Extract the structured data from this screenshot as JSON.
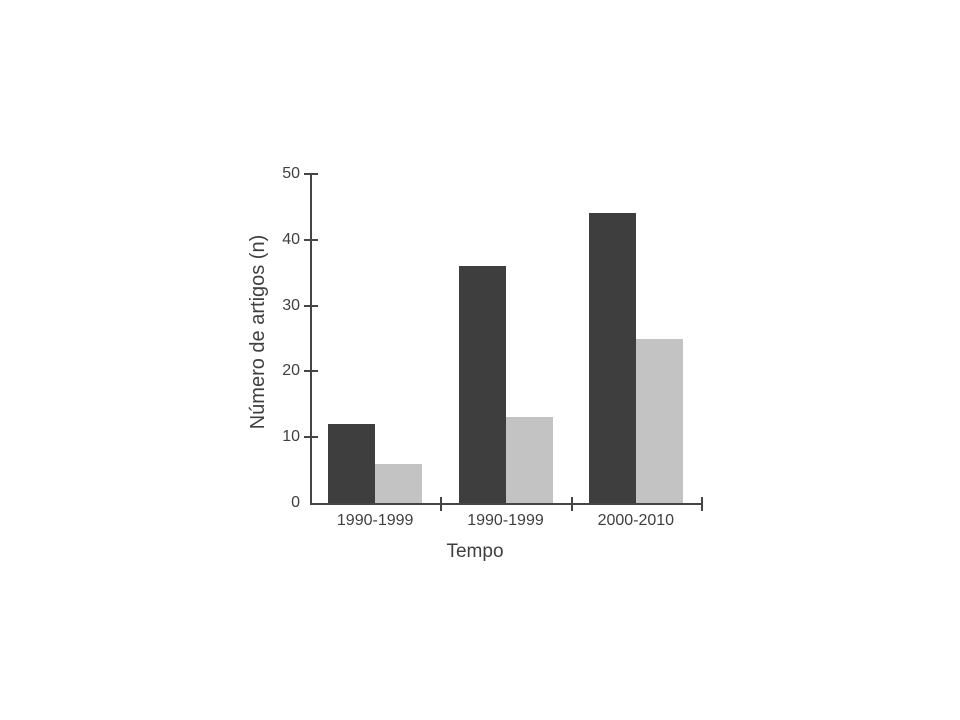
{
  "chart_data": {
    "type": "bar",
    "title": "",
    "xlabel": "Tempo",
    "ylabel": "Número de artigos (n)",
    "categories": [
      "1990-1999",
      "1990-1999",
      "2000-2010"
    ],
    "series": [
      {
        "name": "dark",
        "color": "#3e3e3e",
        "values": [
          12,
          36,
          44
        ]
      },
      {
        "name": "light",
        "color": "#c3c3c3",
        "values": [
          6,
          13,
          25
        ]
      }
    ],
    "ylim": [
      0,
      50
    ],
    "yticks": [
      0,
      10,
      20,
      30,
      40,
      50
    ],
    "grid": false,
    "legend": "none"
  },
  "colors": {
    "background": "#ffffff",
    "axis": "#454545",
    "text": "#3f3f3f"
  }
}
